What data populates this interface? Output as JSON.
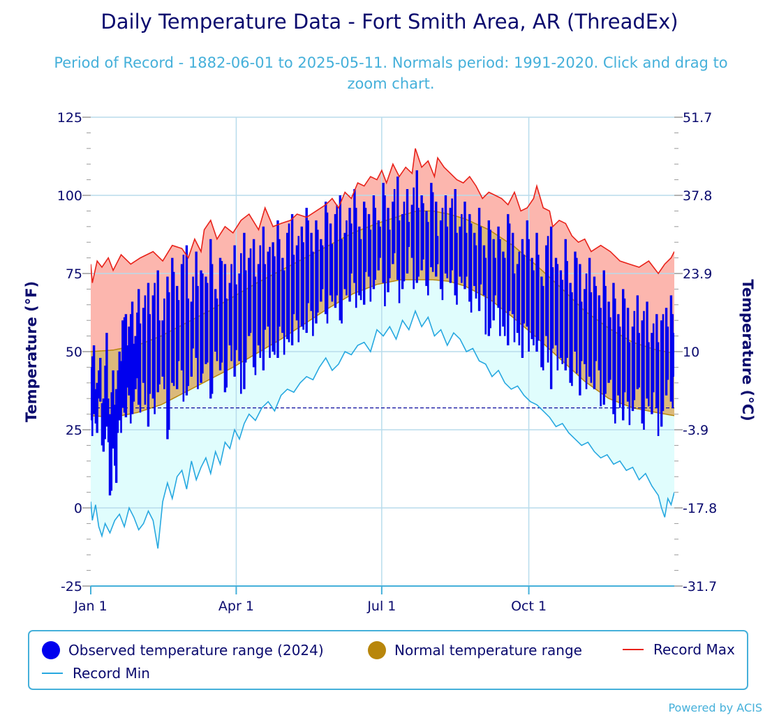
{
  "header": {
    "title": "Daily Temperature Data - Fort Smith Area, AR (ThreadEx)",
    "subtitle": "Period of Record - 1882-06-01 to 2025-05-11. Normals period: 1991-2020. Click and drag to zoom chart."
  },
  "footer": {
    "credit": "Powered by ACIS"
  },
  "colors": {
    "observed": "#0000ee",
    "normal_fill": "#dbb97b",
    "normal_line": "#b8860b",
    "record_max": "#e8221a",
    "record_max_fill": "#fcb6ae",
    "record_min": "#27a8e0",
    "record_min_fill": "#e0fdfd",
    "grid": "#b8dcec",
    "freezing": "#0a0a9e"
  },
  "chart_data": {
    "type": "area",
    "title": "Daily Temperature Data - Fort Smith Area, AR (ThreadEx)",
    "ylabel": "Temperature (°F)",
    "y2label": "Temperature (°C)",
    "ylim": [
      -25,
      125
    ],
    "yticks": [
      -25,
      0,
      25,
      50,
      75,
      100,
      125
    ],
    "y2ticks": [
      "-31.7",
      "-17.8",
      "-3.9",
      "10",
      "23.9",
      "37.8",
      "51.7"
    ],
    "xlim_day": [
      1,
      366
    ],
    "xticks": [
      {
        "label": "Jan 1",
        "day": 1
      },
      {
        "label": "Apr 1",
        "day": 92
      },
      {
        "label": "Jul 1",
        "day": 183
      },
      {
        "label": "Oct 1",
        "day": 275
      }
    ],
    "freezing_line_f": 32,
    "freezing_line_end_day": 366,
    "legend": {
      "observed": "Observed temperature range (2024)",
      "normal": "Normal temperature range",
      "record_max": "Record Max",
      "record_min": "Record Min"
    },
    "series": [
      {
        "name": "Record Max",
        "days": [
          1,
          2,
          5,
          8,
          12,
          15,
          20,
          26,
          32,
          40,
          46,
          52,
          58,
          62,
          66,
          70,
          72,
          76,
          80,
          85,
          90,
          95,
          100,
          106,
          110,
          115,
          120,
          126,
          130,
          136,
          142,
          148,
          152,
          156,
          160,
          164,
          168,
          172,
          176,
          180,
          183,
          186,
          190,
          194,
          198,
          202,
          204,
          208,
          212,
          216,
          218,
          222,
          226,
          230,
          234,
          238,
          242,
          246,
          250,
          254,
          258,
          262,
          266,
          270,
          274,
          278,
          280,
          284,
          288,
          290,
          294,
          298,
          302,
          306,
          310,
          314,
          320,
          326,
          332,
          338,
          344,
          350,
          356,
          360,
          364,
          366
        ],
        "values": [
          78,
          72,
          79,
          77,
          80,
          76,
          81,
          78,
          80,
          82,
          79,
          84,
          83,
          80,
          86,
          82,
          89,
          92,
          86,
          90,
          88,
          92,
          94,
          89,
          96,
          90,
          91,
          92,
          94,
          93,
          95,
          97,
          99,
          96,
          101,
          99,
          104,
          103,
          106,
          105,
          108,
          104,
          110,
          106,
          109,
          107,
          115,
          109,
          111,
          106,
          112,
          109,
          107,
          105,
          104,
          106,
          103,
          99,
          101,
          100,
          99,
          97,
          101,
          95,
          96,
          99,
          103,
          96,
          95,
          90,
          92,
          91,
          87,
          85,
          86,
          82,
          84,
          82,
          79,
          78,
          77,
          79,
          75,
          78,
          80,
          82
        ]
      },
      {
        "name": "Record Min",
        "days": [
          1,
          2,
          4,
          6,
          8,
          10,
          13,
          16,
          19,
          22,
          25,
          28,
          31,
          34,
          37,
          40,
          43,
          46,
          49,
          52,
          55,
          58,
          61,
          64,
          67,
          70,
          73,
          76,
          79,
          82,
          85,
          88,
          91,
          94,
          97,
          100,
          104,
          108,
          112,
          116,
          120,
          124,
          128,
          132,
          136,
          140,
          144,
          148,
          152,
          156,
          160,
          164,
          168,
          172,
          176,
          180,
          184,
          188,
          192,
          196,
          200,
          204,
          208,
          212,
          216,
          220,
          224,
          228,
          232,
          236,
          240,
          244,
          248,
          252,
          256,
          260,
          264,
          268,
          272,
          276,
          280,
          284,
          288,
          292,
          296,
          300,
          304,
          308,
          312,
          316,
          320,
          324,
          328,
          332,
          336,
          340,
          344,
          348,
          352,
          356,
          358,
          360,
          362,
          364,
          366
        ],
        "values": [
          2,
          -4,
          1,
          -6,
          -9,
          -5,
          -8,
          -4,
          -2,
          -6,
          0,
          -3,
          -7,
          -5,
          -1,
          -4,
          -13,
          2,
          8,
          3,
          10,
          12,
          6,
          15,
          9,
          13,
          16,
          11,
          18,
          14,
          21,
          19,
          25,
          22,
          27,
          30,
          28,
          32,
          34,
          31,
          36,
          38,
          37,
          40,
          42,
          41,
          45,
          48,
          44,
          46,
          50,
          49,
          52,
          53,
          50,
          57,
          55,
          58,
          54,
          60,
          57,
          63,
          58,
          61,
          55,
          57,
          52,
          56,
          54,
          50,
          51,
          47,
          46,
          42,
          44,
          40,
          38,
          39,
          36,
          34,
          33,
          31,
          29,
          26,
          27,
          24,
          22,
          20,
          21,
          18,
          16,
          17,
          14,
          15,
          12,
          13,
          9,
          11,
          7,
          4,
          0,
          -3,
          3,
          1,
          5
        ]
      },
      {
        "name": "Normal High",
        "days": [
          1,
          15,
          30,
          45,
          60,
          75,
          90,
          105,
          120,
          135,
          150,
          165,
          180,
          195,
          205,
          215,
          225,
          235,
          250,
          265,
          280,
          295,
          310,
          325,
          340,
          355,
          366
        ],
        "values": [
          50,
          50.5,
          52,
          55,
          59,
          63,
          67.5,
          72,
          76,
          80,
          84,
          88,
          91,
          93.5,
          95,
          95,
          94,
          92.5,
          89,
          84,
          77.5,
          70.5,
          63,
          57.5,
          53,
          50.5,
          49.5
        ]
      },
      {
        "name": "Normal Low",
        "days": [
          1,
          15,
          30,
          45,
          60,
          75,
          90,
          105,
          120,
          135,
          150,
          165,
          180,
          195,
          205,
          215,
          225,
          235,
          250,
          265,
          280,
          295,
          310,
          325,
          340,
          355,
          366
        ],
        "values": [
          29.5,
          29,
          30.5,
          33,
          37,
          41,
          45,
          49.5,
          54,
          59,
          64,
          68.5,
          71.5,
          73,
          73,
          73,
          72.5,
          71,
          67,
          61,
          54.5,
          47.5,
          40.5,
          35,
          32,
          30.5,
          29.5
        ]
      },
      {
        "name": "Observed Low (2024)",
        "days": [
          1,
          3,
          5,
          7,
          9,
          11,
          13,
          15,
          17,
          19,
          21,
          23,
          25,
          27,
          29,
          31,
          34,
          37,
          40,
          43,
          46,
          49,
          52,
          55,
          58,
          61,
          64,
          67,
          70,
          73,
          76,
          79,
          82,
          85,
          88,
          91,
          94,
          97,
          100,
          103,
          106,
          109,
          112,
          115,
          118,
          121,
          124,
          127,
          130,
          133,
          136,
          139,
          142,
          145,
          148,
          151,
          154,
          157,
          160,
          163,
          166,
          169,
          172,
          175,
          178,
          181,
          184,
          187,
          190,
          193,
          196,
          199,
          202,
          205,
          208,
          211,
          214,
          217,
          220,
          223,
          226,
          229,
          232,
          235,
          238,
          241,
          244,
          247,
          250,
          253,
          256,
          259,
          262,
          265,
          268,
          271,
          274,
          277,
          280,
          283,
          286,
          289,
          292,
          295,
          298,
          301,
          304,
          307,
          310,
          313,
          316,
          319,
          322,
          325,
          328,
          331,
          334,
          337,
          340,
          343,
          346,
          349,
          352,
          355,
          358,
          361,
          364,
          366
        ],
        "values": [
          28,
          30,
          24,
          34,
          18,
          26,
          4,
          19,
          8,
          28,
          32,
          29,
          36,
          30,
          38,
          33,
          40,
          26,
          35,
          37,
          42,
          22,
          40,
          38,
          44,
          36,
          42,
          48,
          40,
          46,
          35,
          50,
          44,
          37,
          52,
          42,
          47,
          38,
          55,
          45,
          52,
          44,
          58,
          50,
          48,
          56,
          54,
          52,
          60,
          58,
          56,
          63,
          59,
          66,
          62,
          68,
          64,
          60,
          70,
          66,
          72,
          68,
          65,
          74,
          70,
          76,
          72,
          69,
          78,
          73,
          70,
          75,
          80,
          72,
          76,
          71,
          77,
          74,
          70,
          75,
          72,
          68,
          74,
          70,
          66,
          71,
          63,
          68,
          55,
          60,
          64,
          58,
          52,
          62,
          56,
          48,
          58,
          54,
          50,
          45,
          55,
          38,
          52,
          48,
          44,
          40,
          50,
          36,
          46,
          42,
          38,
          44,
          33,
          40,
          30,
          36,
          28,
          34,
          31,
          38,
          27,
          35,
          30,
          32,
          26,
          36,
          34,
          42
        ]
      },
      {
        "name": "Observed High (2024)",
        "days": [
          1,
          3,
          5,
          7,
          9,
          11,
          13,
          15,
          17,
          19,
          21,
          23,
          25,
          27,
          29,
          31,
          34,
          37,
          40,
          43,
          46,
          49,
          52,
          55,
          58,
          61,
          64,
          67,
          70,
          73,
          76,
          79,
          82,
          85,
          88,
          91,
          94,
          97,
          100,
          103,
          106,
          109,
          112,
          115,
          118,
          121,
          124,
          127,
          130,
          133,
          136,
          139,
          142,
          145,
          148,
          151,
          154,
          157,
          160,
          163,
          166,
          169,
          172,
          175,
          178,
          181,
          184,
          187,
          190,
          193,
          196,
          199,
          202,
          205,
          208,
          211,
          214,
          217,
          220,
          223,
          226,
          229,
          232,
          235,
          238,
          241,
          244,
          247,
          250,
          253,
          256,
          259,
          262,
          265,
          268,
          271,
          274,
          277,
          280,
          283,
          286,
          289,
          292,
          295,
          298,
          301,
          304,
          307,
          310,
          313,
          316,
          319,
          322,
          325,
          328,
          331,
          334,
          337,
          340,
          343,
          346,
          349,
          352,
          355,
          358,
          361,
          364,
          366
        ],
        "values": [
          45,
          52,
          40,
          48,
          35,
          56,
          30,
          44,
          38,
          50,
          60,
          62,
          58,
          66,
          55,
          70,
          64,
          72,
          68,
          76,
          60,
          74,
          80,
          71,
          78,
          84,
          66,
          82,
          76,
          74,
          86,
          70,
          80,
          78,
          72,
          84,
          75,
          88,
          80,
          86,
          78,
          90,
          82,
          85,
          92,
          80,
          88,
          94,
          84,
          90,
          96,
          88,
          92,
          86,
          98,
          91,
          94,
          100,
          88,
          96,
          102,
          90,
          98,
          94,
          100,
          92,
          104,
          96,
          98,
          106,
          94,
          102,
          97,
          108,
          100,
          95,
          104,
          98,
          92,
          100,
          96,
          102,
          90,
          98,
          94,
          88,
          96,
          84,
          92,
          86,
          90,
          82,
          94,
          88,
          78,
          86,
          92,
          80,
          88,
          74,
          84,
          90,
          80,
          76,
          86,
          72,
          82,
          78,
          70,
          80,
          74,
          68,
          76,
          66,
          72,
          62,
          70,
          64,
          58,
          68,
          60,
          66,
          56,
          62,
          60,
          64,
          68,
          56
        ]
      }
    ]
  }
}
